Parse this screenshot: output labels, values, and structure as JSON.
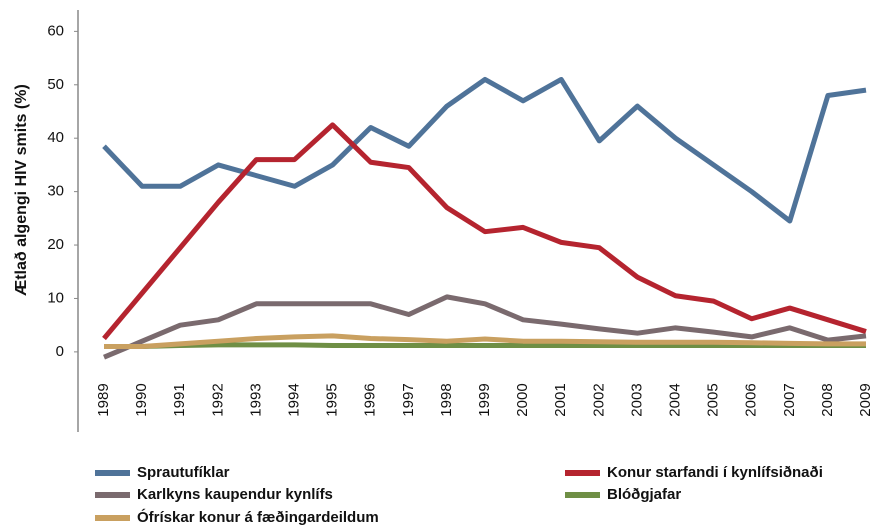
{
  "chart_data": {
    "type": "line",
    "ylabel": "Ætlað algengi HIV smits (%)",
    "categories": [
      "1989",
      "1990",
      "1991",
      "1992",
      "1993",
      "1994",
      "1995",
      "1996",
      "1997",
      "1998",
      "1999",
      "2000",
      "2001",
      "2002",
      "2003",
      "2004",
      "2005",
      "2006",
      "2007",
      "2008",
      "2009"
    ],
    "ylim": [
      -15,
      64
    ],
    "yticks": [
      0,
      10,
      20,
      30,
      40,
      50,
      60
    ],
    "grid": false,
    "series": [
      {
        "name": "Sprautufíklar",
        "color": "#4f7399",
        "values": [
          38.5,
          31,
          31,
          35,
          33,
          31,
          35,
          42,
          38.5,
          46,
          51,
          47,
          51,
          39.5,
          46,
          40,
          35,
          30,
          24.5,
          48,
          49
        ]
      },
      {
        "name": "Konur starfandi í kynlífsiðnaði",
        "color": "#b5242f",
        "values": [
          2.5,
          11,
          19.5,
          28,
          36,
          36,
          42.5,
          35.5,
          34.5,
          27,
          22.5,
          23.3,
          20.5,
          19.5,
          14,
          10.5,
          9.5,
          6.2,
          8.2,
          6,
          3.8
        ]
      },
      {
        "name": "Karlkyns kaupendur kynlífs",
        "color": "#7a6a6e",
        "values": [
          -1,
          2,
          5,
          6,
          9,
          9,
          9,
          9,
          7,
          10.3,
          9,
          6,
          5.2,
          4.3,
          3.5,
          4.5,
          3.7,
          2.8,
          4.5,
          2.2,
          3
        ]
      },
      {
        "name": "Blóðgjafar",
        "color": "#6f8f45",
        "values": [
          1,
          1,
          1.2,
          1.3,
          1.3,
          1.3,
          1.2,
          1.2,
          1.2,
          1.2,
          1.2,
          1.2,
          1.2,
          1.2,
          1.2,
          1.2,
          1.2,
          1.2,
          1.2,
          1.2,
          1.2
        ]
      },
      {
        "name": "Ófrískar konur á fæðingardeildum",
        "color": "#c9a060",
        "values": [
          1,
          1,
          1.5,
          2,
          2.5,
          2.8,
          3,
          2.5,
          2.3,
          2,
          2.4,
          2,
          2,
          1.9,
          1.8,
          1.8,
          1.8,
          1.7,
          1.6,
          1.5,
          1.5
        ]
      }
    ]
  }
}
